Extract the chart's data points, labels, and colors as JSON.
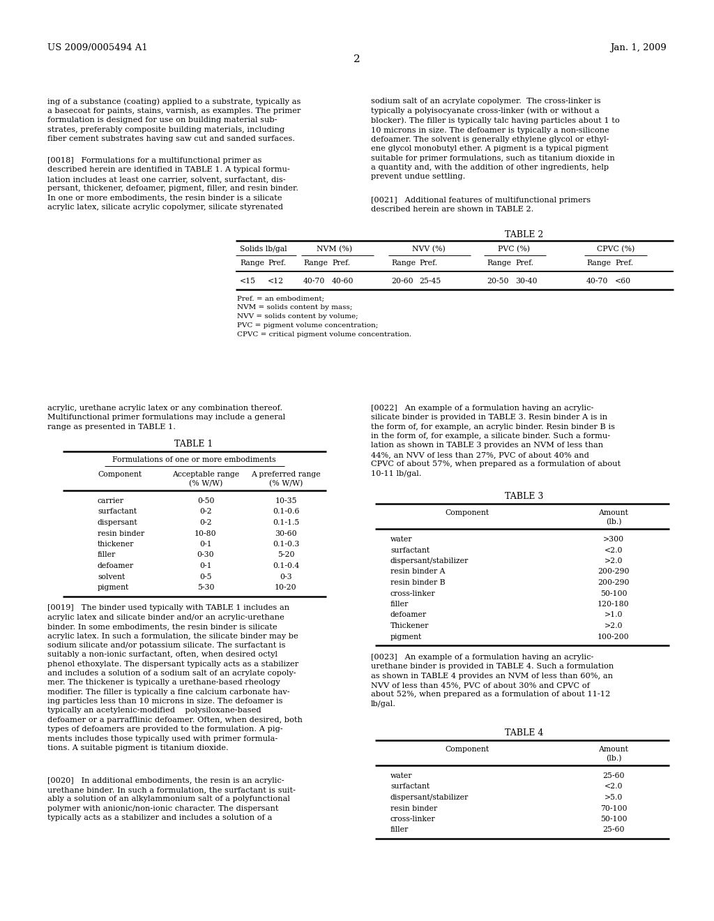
{
  "bg_color": "#ffffff",
  "header_left": "US 2009/0005494 A1",
  "header_right": "Jan. 1, 2009",
  "page_number": "2",
  "table2_footnotes": [
    "Pref. = an embodiment;",
    "NVM = solids content by mass;",
    "NVV = solids content by volume;",
    "PVC = pigment volume concentration;",
    "CPVC = critical pigment volume concentration."
  ],
  "table1_data": [
    [
      "carrier",
      "0-50",
      "10-35"
    ],
    [
      "surfactant",
      "0-2",
      "0.1-0.6"
    ],
    [
      "dispersant",
      "0-2",
      "0.1-1.5"
    ],
    [
      "resin binder",
      "10-80",
      "30-60"
    ],
    [
      "thickener",
      "0-1",
      "0.1-0.3"
    ],
    [
      "filler",
      "0-30",
      "5-20"
    ],
    [
      "defoamer",
      "0-1",
      "0.1-0.4"
    ],
    [
      "solvent",
      "0-5",
      "0-3"
    ],
    [
      "pigment",
      "5-30",
      "10-20"
    ]
  ],
  "table3_data": [
    [
      "water",
      ">300"
    ],
    [
      "surfactant",
      "<2.0"
    ],
    [
      "dispersant/stabilizer",
      ">2.0"
    ],
    [
      "resin binder A",
      "200-290"
    ],
    [
      "resin binder B",
      "200-290"
    ],
    [
      "cross-linker",
      "50-100"
    ],
    [
      "filler",
      "120-180"
    ],
    [
      "defoamer",
      ">1.0"
    ],
    [
      "Thickener",
      ">2.0"
    ],
    [
      "pigment",
      "100-200"
    ]
  ],
  "table4_data": [
    [
      "water",
      "25-60"
    ],
    [
      "surfactant",
      "<2.0"
    ],
    [
      "dispersant/stabilizer",
      ">5.0"
    ],
    [
      "resin binder",
      "70-100"
    ],
    [
      "cross-linker",
      "50-100"
    ],
    [
      "filler",
      "25-60"
    ]
  ]
}
